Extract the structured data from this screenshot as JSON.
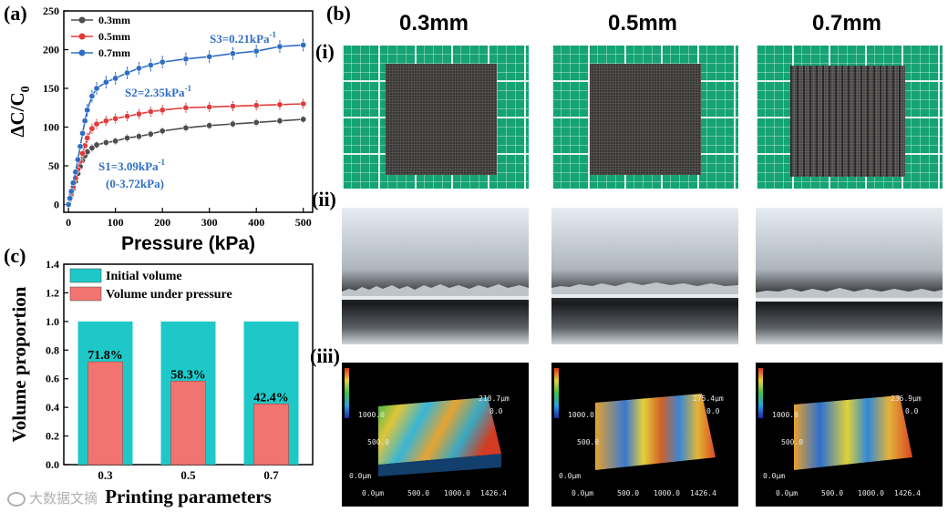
{
  "panels": {
    "a": "(a)",
    "b": "(b)",
    "c": "(c)"
  },
  "rows": {
    "i": "(i)",
    "ii": "(ii)",
    "iii": "(iii)"
  },
  "columns": [
    "0.3mm",
    "0.5mm",
    "0.7mm"
  ],
  "annotations": {
    "s1": "S1=3.09kPa",
    "s1_sup": "-1",
    "s1_range": "(0-3.72kPa)",
    "s2": "S2=2.35kPa",
    "s2_sup": "-1",
    "s3": "S3=0.21kPa",
    "s3_sup": "-1"
  },
  "topo_labels": {
    "max_values": [
      "218.7μm",
      "275.4μm",
      "236.9μm"
    ],
    "zero_z": "0.0",
    "y_ticks": [
      "1000.0",
      "500.0",
      "0.0μm"
    ],
    "x_ticks": [
      "0.0μm",
      "500.0",
      "1000.0",
      "1426.4"
    ]
  },
  "watermark": "大数据文摘",
  "colors": {
    "s03": "#4d4d4d",
    "s05": "#e23b3b",
    "s07": "#2f6ec4",
    "cyan": "#1fc8c8",
    "salmon": "#f27470"
  },
  "chart_data": [
    {
      "type": "line",
      "title": "",
      "xlabel": "Pressure (kPa)",
      "ylabel": "ΔC/C0",
      "xlim": [
        -10,
        520
      ],
      "ylim": [
        -10,
        250
      ],
      "xticks": [
        0,
        100,
        200,
        300,
        400,
        500
      ],
      "yticks": [
        0,
        50,
        100,
        150,
        200,
        250
      ],
      "legend_position": "top-left",
      "series": [
        {
          "name": "0.3mm",
          "color": "#4d4d4d",
          "x": [
            0,
            3,
            6,
            10,
            15,
            20,
            25,
            30,
            35,
            40,
            50,
            60,
            80,
            100,
            125,
            150,
            175,
            200,
            250,
            300,
            350,
            400,
            450,
            500
          ],
          "y": [
            0,
            6,
            12,
            20,
            30,
            40,
            49,
            57,
            63,
            68,
            73,
            77,
            80,
            82,
            86,
            88,
            91,
            95,
            99,
            102,
            104,
            106,
            108,
            110
          ]
        },
        {
          "name": "0.5mm",
          "color": "#e23b3b",
          "x": [
            0,
            3,
            6,
            10,
            15,
            20,
            25,
            30,
            35,
            40,
            50,
            60,
            80,
            100,
            125,
            150,
            175,
            200,
            250,
            300,
            350,
            400,
            450,
            500
          ],
          "y": [
            0,
            7,
            14,
            23,
            34,
            45,
            56,
            66,
            76,
            86,
            98,
            104,
            108,
            111,
            114,
            117,
            120,
            122,
            125,
            126,
            127,
            128,
            129,
            130
          ]
        },
        {
          "name": "0.7mm",
          "color": "#2f6ec4",
          "x": [
            0,
            3,
            6,
            10,
            15,
            20,
            25,
            30,
            35,
            40,
            50,
            60,
            80,
            100,
            125,
            150,
            175,
            200,
            250,
            300,
            350,
            400,
            450,
            500
          ],
          "y": [
            0,
            8,
            17,
            28,
            42,
            58,
            75,
            92,
            108,
            122,
            140,
            150,
            158,
            163,
            170,
            176,
            180,
            184,
            188,
            191,
            195,
            198,
            204,
            206
          ]
        }
      ]
    },
    {
      "type": "bar",
      "title": "",
      "xlabel": "Printing parameters",
      "ylabel": "Volume proportion",
      "categories": [
        "0.3",
        "0.5",
        "0.7"
      ],
      "ylim": [
        0.0,
        1.4
      ],
      "yticks": [
        "0.0",
        "0.2",
        "0.4",
        "0.6",
        "0.8",
        "1.0",
        "1.2",
        "1.4"
      ],
      "legend_position": "top",
      "series": [
        {
          "name": "Initial volume",
          "color": "#1fc8c8",
          "values": [
            1.0,
            1.0,
            1.0
          ]
        },
        {
          "name": "Volume under pressure",
          "color": "#f27470",
          "values": [
            0.718,
            0.583,
            0.424
          ]
        }
      ],
      "data_labels": [
        "71.8%",
        "58.3%",
        "42.4%"
      ]
    }
  ]
}
